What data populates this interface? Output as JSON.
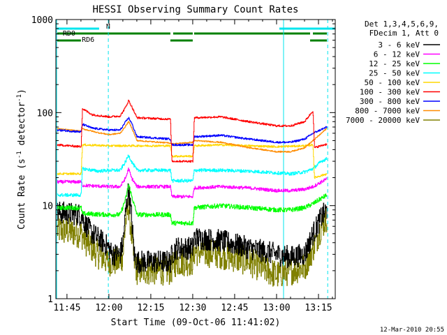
{
  "chart_data": {
    "type": "line",
    "title": "HESSI Observing Summary Count Rates",
    "xlabel": "Start Time (09-Oct-06 11:41:02)",
    "ylabel_main": "Count Rate (s",
    "ylabel_sup1": "-1",
    "ylabel_mid": " detector",
    "ylabel_sup2": "-1",
    "ylabel_end": ")",
    "footer_date": "12-Mar-2010 20:55",
    "x_ticks": [
      "11:45",
      "12:00",
      "12:15",
      "12:30",
      "12:45",
      "13:00",
      "13:15"
    ],
    "x_tick_minutes": [
      225,
      240,
      255,
      270,
      285,
      300,
      315
    ],
    "xlim_minutes": [
      221.03,
      321
    ],
    "y_scale": "log",
    "ylim": [
      1,
      1000
    ],
    "y_ticks": [
      "1",
      "10",
      "100",
      "1000"
    ],
    "y_tick_values": [
      1,
      10,
      100,
      1000
    ],
    "legend": {
      "header": [
        "Det 1,3,4,5,6,9,",
        "FDecim 1, Att 0"
      ],
      "position": "right"
    },
    "flags": [
      {
        "name": "N",
        "color": "#00e5ee",
        "segments": [
          [
            221.5,
            236.5
          ],
          [
            301,
            321
          ]
        ]
      },
      {
        "name": "RD0",
        "color": "#008000",
        "segments": [
          [
            221.5,
            262
          ],
          [
            263,
            270
          ],
          [
            270.5,
            312
          ],
          [
            313,
            318
          ]
        ]
      },
      {
        "name": "RD6",
        "color": "#008000",
        "segments": [
          [
            221.5,
            230
          ],
          [
            262,
            270
          ],
          [
            312,
            318
          ]
        ]
      }
    ],
    "vlines": [
      {
        "x": 221.3,
        "color": "#00e5ee",
        "style": "solid"
      },
      {
        "x": 239.8,
        "color": "#00e5ee",
        "style": "dashed"
      },
      {
        "x": 302.5,
        "color": "#00e5ee",
        "style": "solid"
      },
      {
        "x": 318.3,
        "color": "#00e5ee",
        "style": "dashed"
      }
    ],
    "series": [
      {
        "name": "3 - 6 keV",
        "color": "#000000",
        "noise": 0.35,
        "points": [
          [
            221.5,
            8.5
          ],
          [
            230,
            8
          ],
          [
            232,
            6
          ],
          [
            234,
            5
          ],
          [
            236,
            4.5
          ],
          [
            238,
            4
          ],
          [
            240,
            3.5
          ],
          [
            241,
            3
          ],
          [
            244,
            3
          ],
          [
            245,
            4
          ],
          [
            246,
            9
          ],
          [
            247,
            15
          ],
          [
            248,
            8
          ],
          [
            249,
            3
          ],
          [
            250,
            2.5
          ],
          [
            262,
            2.5
          ],
          [
            262.5,
            3
          ],
          [
            264,
            3.5
          ],
          [
            270,
            3.5
          ],
          [
            270.5,
            4.5
          ],
          [
            280,
            4.2
          ],
          [
            290,
            3.5
          ],
          [
            300,
            3
          ],
          [
            305,
            2.8
          ],
          [
            310,
            3
          ],
          [
            313,
            5
          ],
          [
            316,
            7.5
          ],
          [
            318,
            9
          ]
        ]
      },
      {
        "name": "6 - 12 keV",
        "color": "#ff00ff",
        "noise": 0.05,
        "points": [
          [
            221.5,
            18
          ],
          [
            230,
            18
          ],
          [
            230.5,
            16.5
          ],
          [
            240,
            16
          ],
          [
            244,
            16
          ],
          [
            246,
            20
          ],
          [
            247,
            25
          ],
          [
            248,
            20
          ],
          [
            250,
            16
          ],
          [
            262,
            16
          ],
          [
            262.5,
            12.5
          ],
          [
            270,
            12.5
          ],
          [
            270.5,
            15.5
          ],
          [
            280,
            16
          ],
          [
            290,
            15.5
          ],
          [
            300,
            14.5
          ],
          [
            305,
            14.5
          ],
          [
            310,
            15
          ],
          [
            313,
            16
          ],
          [
            316,
            18
          ],
          [
            318,
            19.5
          ]
        ]
      },
      {
        "name": "12 - 25 keV",
        "color": "#00ff00",
        "noise": 0.07,
        "points": [
          [
            221.5,
            9.5
          ],
          [
            230,
            9.5
          ],
          [
            230.5,
            8.2
          ],
          [
            240,
            8
          ],
          [
            244,
            8
          ],
          [
            246,
            12
          ],
          [
            247,
            17
          ],
          [
            248,
            13
          ],
          [
            250,
            8
          ],
          [
            262,
            8
          ],
          [
            262.5,
            6.5
          ],
          [
            270,
            6.5
          ],
          [
            270.5,
            9.5
          ],
          [
            280,
            10
          ],
          [
            290,
            9.5
          ],
          [
            300,
            9
          ],
          [
            305,
            9
          ],
          [
            310,
            9.5
          ],
          [
            313,
            10.5
          ],
          [
            316,
            12
          ],
          [
            318,
            13
          ]
        ]
      },
      {
        "name": "25 - 50 keV",
        "color": "#00ffff",
        "noise": 0.05,
        "points": [
          [
            221.5,
            13
          ],
          [
            230,
            13
          ],
          [
            230.5,
            25
          ],
          [
            236,
            23.5
          ],
          [
            240,
            24
          ],
          [
            244,
            24
          ],
          [
            246,
            30
          ],
          [
            247,
            35
          ],
          [
            248,
            30
          ],
          [
            250,
            24
          ],
          [
            262,
            24
          ],
          [
            262.5,
            18.5
          ],
          [
            270,
            18.5
          ],
          [
            270.5,
            24
          ],
          [
            280,
            24
          ],
          [
            290,
            23.5
          ],
          [
            300,
            22.5
          ],
          [
            305,
            22
          ],
          [
            310,
            23
          ],
          [
            313,
            25
          ],
          [
            316,
            30
          ],
          [
            318,
            32
          ]
        ]
      },
      {
        "name": "50 - 100 keV",
        "color": "#ffd700",
        "noise": 0.03,
        "points": [
          [
            221.5,
            22
          ],
          [
            230,
            22
          ],
          [
            230.5,
            45
          ],
          [
            240,
            44
          ],
          [
            262,
            44
          ],
          [
            262.5,
            34
          ],
          [
            270,
            34
          ],
          [
            270.5,
            44
          ],
          [
            280,
            45
          ],
          [
            290,
            44
          ],
          [
            300,
            43
          ],
          [
            310,
            44
          ],
          [
            313,
            45
          ],
          [
            313.5,
            20
          ],
          [
            318,
            22
          ]
        ]
      },
      {
        "name": "100 - 300 keV",
        "color": "#ff0000",
        "noise": 0.03,
        "points": [
          [
            221.5,
            45
          ],
          [
            230,
            43
          ],
          [
            230.5,
            110
          ],
          [
            234,
            95
          ],
          [
            240,
            90
          ],
          [
            244,
            92
          ],
          [
            246,
            115
          ],
          [
            247,
            135
          ],
          [
            248,
            118
          ],
          [
            250,
            88
          ],
          [
            262,
            85
          ],
          [
            262.5,
            30
          ],
          [
            270,
            30
          ],
          [
            270.5,
            88
          ],
          [
            280,
            90
          ],
          [
            290,
            80
          ],
          [
            300,
            72
          ],
          [
            305,
            72
          ],
          [
            310,
            80
          ],
          [
            313,
            105
          ],
          [
            313.5,
            42
          ],
          [
            318,
            46
          ]
        ]
      },
      {
        "name": "300 - 800 keV",
        "color": "#0000ff",
        "noise": 0.03,
        "points": [
          [
            221.5,
            65
          ],
          [
            230,
            62
          ],
          [
            230.5,
            75
          ],
          [
            234,
            68
          ],
          [
            240,
            65
          ],
          [
            244,
            65
          ],
          [
            246,
            80
          ],
          [
            247,
            88
          ],
          [
            248,
            78
          ],
          [
            250,
            55
          ],
          [
            262,
            52
          ],
          [
            262.5,
            45
          ],
          [
            270,
            45
          ],
          [
            270.5,
            55
          ],
          [
            280,
            57
          ],
          [
            290,
            52
          ],
          [
            300,
            48
          ],
          [
            305,
            48
          ],
          [
            310,
            52
          ],
          [
            313,
            60
          ],
          [
            316,
            66
          ],
          [
            318,
            70
          ]
        ]
      },
      {
        "name": "800 - 7000 keV",
        "color": "#ff8c00",
        "noise": 0.02,
        "points": [
          [
            221.5,
            67
          ],
          [
            230,
            63
          ],
          [
            230.5,
            67
          ],
          [
            236,
            61
          ],
          [
            240,
            58
          ],
          [
            244,
            60
          ],
          [
            246,
            72
          ],
          [
            247,
            80
          ],
          [
            248,
            70
          ],
          [
            250,
            50
          ],
          [
            262,
            47
          ],
          [
            262.5,
            46
          ],
          [
            270,
            48
          ],
          [
            270.5,
            50
          ],
          [
            280,
            48
          ],
          [
            290,
            42
          ],
          [
            300,
            38
          ],
          [
            305,
            38
          ],
          [
            310,
            42
          ],
          [
            313,
            50
          ],
          [
            316,
            60
          ],
          [
            318,
            68
          ]
        ]
      },
      {
        "name": "7000 - 20000 keV",
        "color": "#808000",
        "noise": 0.45,
        "points": [
          [
            221.5,
            5.5
          ],
          [
            230,
            5
          ],
          [
            232,
            4
          ],
          [
            236,
            3
          ],
          [
            240,
            2.5
          ],
          [
            244,
            2.5
          ],
          [
            245,
            3
          ],
          [
            246,
            7
          ],
          [
            247,
            10
          ],
          [
            248,
            5
          ],
          [
            249,
            2.5
          ],
          [
            250,
            2
          ],
          [
            262,
            2
          ],
          [
            264,
            2.5
          ],
          [
            270,
            2.5
          ],
          [
            270.5,
            3.2
          ],
          [
            280,
            3
          ],
          [
            290,
            2.5
          ],
          [
            300,
            1.8
          ],
          [
            305,
            2
          ],
          [
            310,
            2.2
          ],
          [
            313,
            3.5
          ],
          [
            316,
            6
          ],
          [
            318,
            7.5
          ]
        ]
      }
    ]
  }
}
